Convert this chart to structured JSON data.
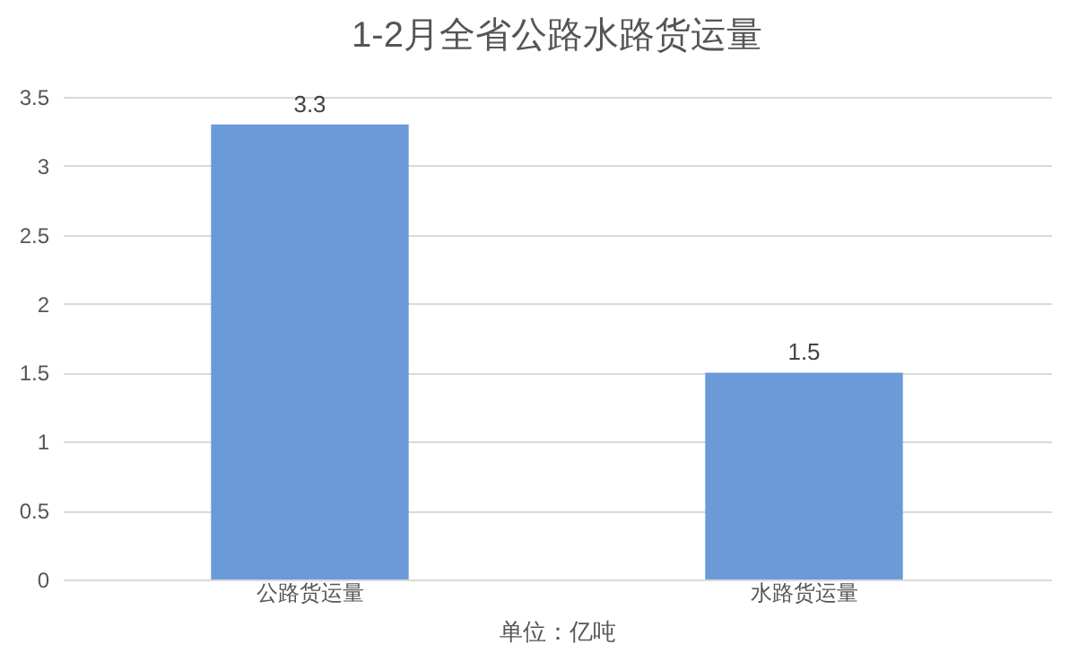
{
  "chart_data": {
    "type": "bar",
    "title": "1-2月全省公路水路货运量",
    "xlabel": "单位：亿吨",
    "categories": [
      "公路货运量",
      "水路货运量"
    ],
    "values": [
      3.3,
      1.5
    ],
    "color": "#6a9bd8",
    "ylim": [
      0,
      3.5
    ],
    "yticks": [
      0,
      0.5,
      1,
      1.5,
      2,
      2.5,
      3,
      3.5
    ],
    "grid": "y",
    "data_labels": true
  }
}
